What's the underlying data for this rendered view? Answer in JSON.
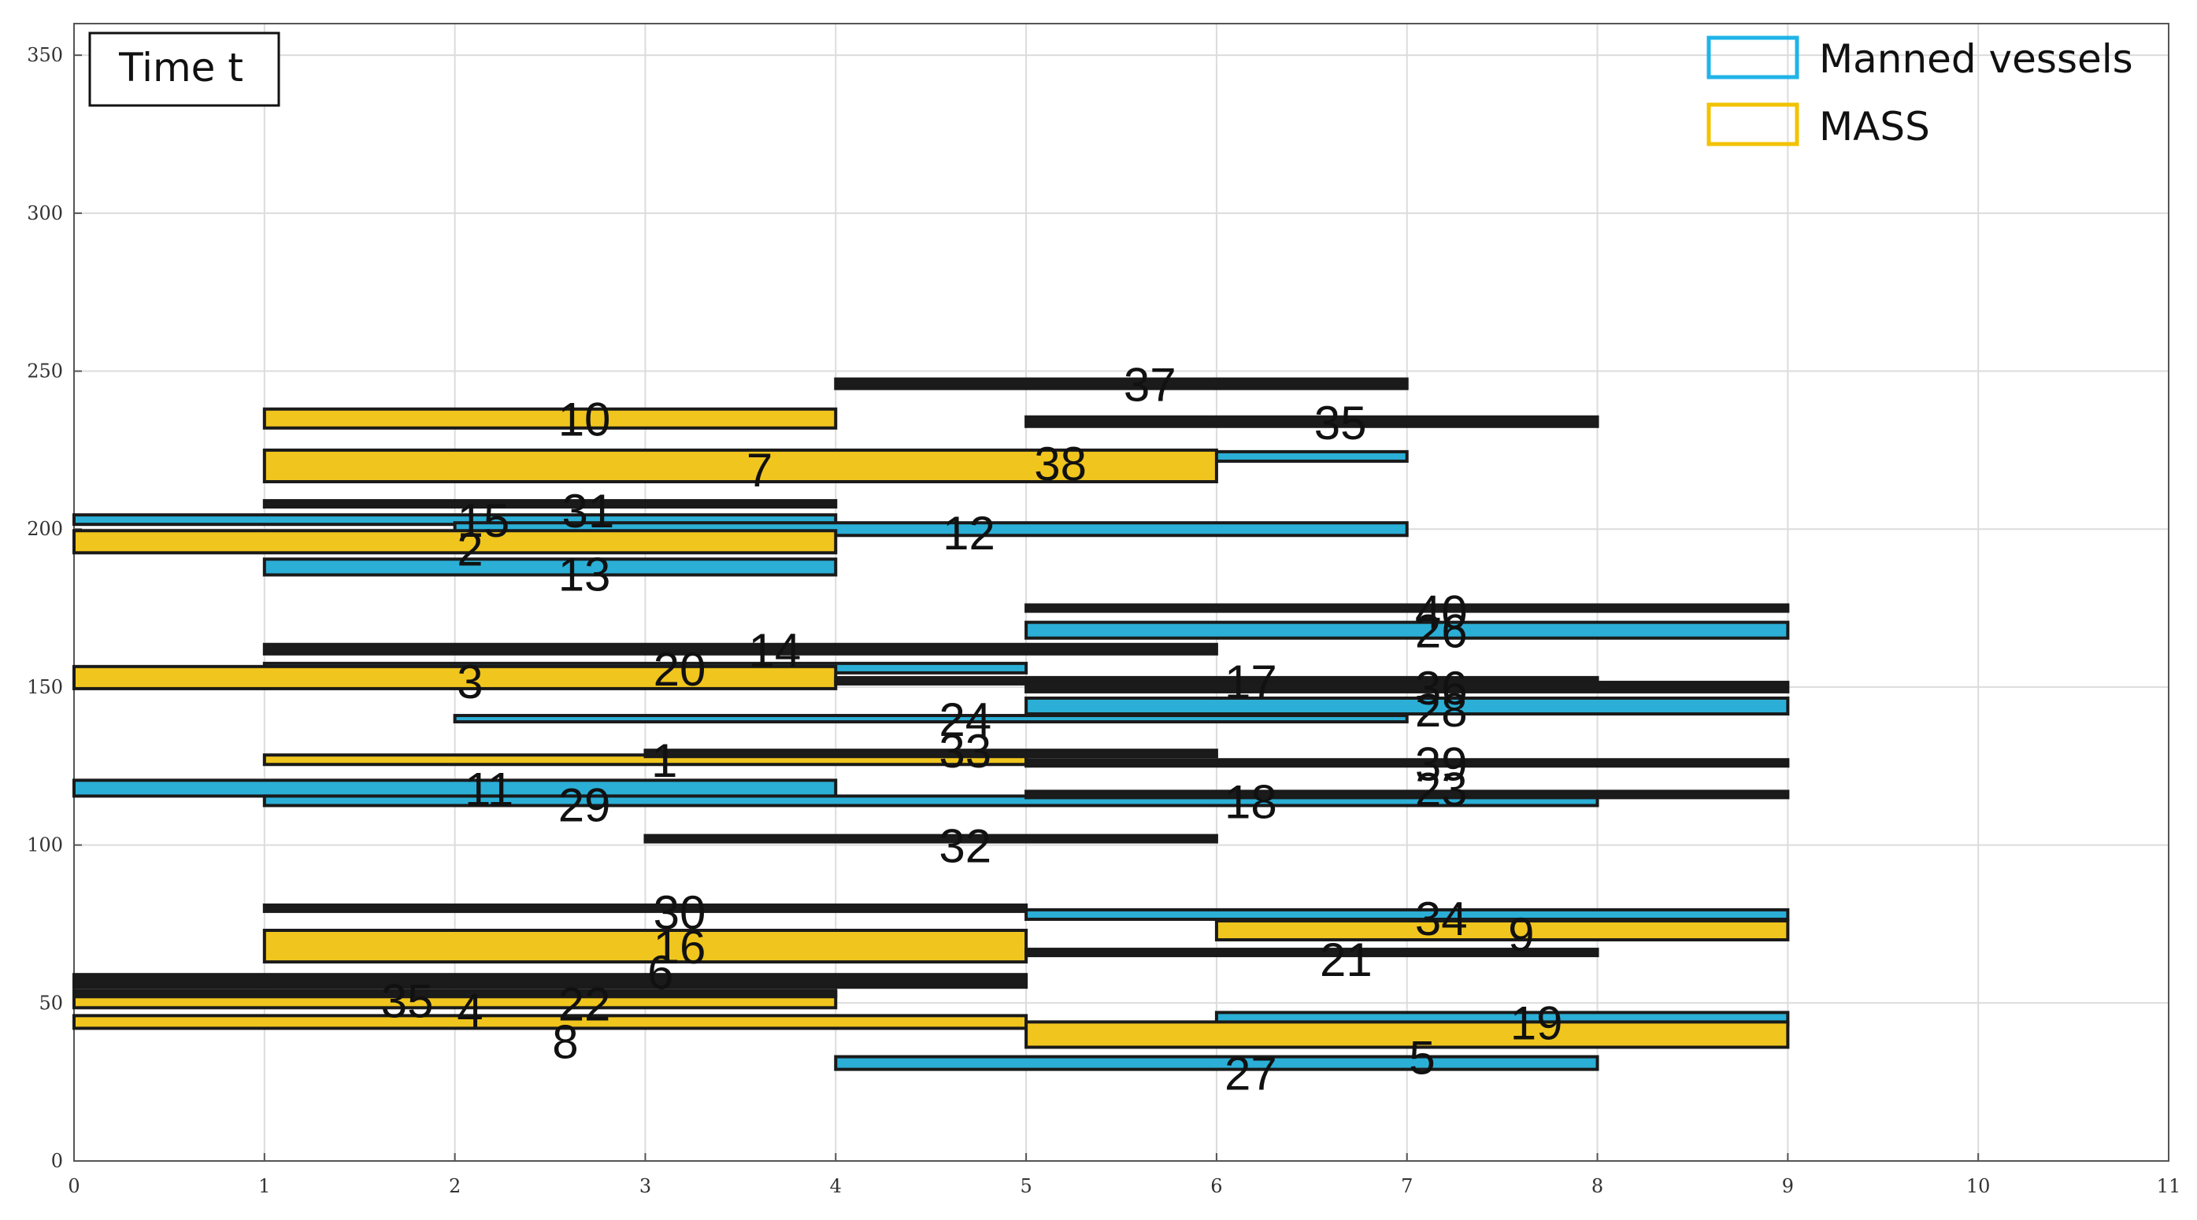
{
  "chart_data": {
    "type": "gantt",
    "annotation": "Time t",
    "xlim": [
      0,
      11
    ],
    "ylim": [
      0,
      360
    ],
    "x_ticks": [
      "0",
      "1",
      "2",
      "3",
      "4",
      "5",
      "6",
      "7",
      "8",
      "9",
      "10",
      "11"
    ],
    "y_ticks": [
      "0",
      "50",
      "100",
      "150",
      "200",
      "250",
      "300",
      "350"
    ],
    "grid": true,
    "legend_position": "top-right",
    "legend": [
      {
        "label": "Manned vessels",
        "color": "#1fb4e8",
        "kind": "manned"
      },
      {
        "label": "MASS",
        "color": "#f2c200",
        "kind": "mass"
      }
    ],
    "colors": {
      "manned": "#2bafd6",
      "mass": "#f0c51e",
      "other": "#1b1b1b",
      "edge": "#1a1a1a"
    },
    "bars": [
      {
        "id": "37",
        "x0": 4,
        "x1": 7,
        "y": 246,
        "h": 3,
        "kind": "other"
      },
      {
        "id": "10",
        "x0": 1,
        "x1": 4,
        "y": 235,
        "h": 6,
        "kind": "mass"
      },
      {
        "id": "35",
        "x0": 5,
        "x1": 8,
        "y": 234,
        "h": 3,
        "kind": "other"
      },
      {
        "id": "38",
        "x0": 3,
        "x1": 7,
        "y": 223,
        "h": 3,
        "kind": "manned"
      },
      {
        "id": "7",
        "x0": 1,
        "x1": 6,
        "y": 220,
        "h": 10,
        "kind": "mass"
      },
      {
        "id": "31",
        "x0": 1,
        "x1": 4,
        "y": 208,
        "h": 2,
        "kind": "other"
      },
      {
        "id": "15",
        "x0": 0,
        "x1": 4,
        "y": 203,
        "h": 3,
        "kind": "manned"
      },
      {
        "id": "12",
        "x0": 2,
        "x1": 7,
        "y": 200,
        "h": 4,
        "kind": "manned"
      },
      {
        "id": "2",
        "x0": 0,
        "x1": 4,
        "y": 196,
        "h": 7,
        "kind": "mass"
      },
      {
        "id": "13",
        "x0": 1,
        "x1": 4,
        "y": 188,
        "h": 5,
        "kind": "manned"
      },
      {
        "id": "40",
        "x0": 5,
        "x1": 9,
        "y": 175,
        "h": 2,
        "kind": "other"
      },
      {
        "id": "26",
        "x0": 5,
        "x1": 9,
        "y": 168,
        "h": 5,
        "kind": "manned"
      },
      {
        "id": "14",
        "x0": 1,
        "x1": 6,
        "y": 162,
        "h": 3,
        "kind": "other"
      },
      {
        "id": "20",
        "x0": 1,
        "x1": 5,
        "y": 156,
        "h": 3,
        "kind": "manned"
      },
      {
        "id": "3",
        "x0": 0,
        "x1": 4,
        "y": 153,
        "h": 7,
        "kind": "mass"
      },
      {
        "id": "17",
        "x0": 4,
        "x1": 8,
        "y": 152,
        "h": 2,
        "kind": "other"
      },
      {
        "id": "36",
        "x0": 5,
        "x1": 9,
        "y": 150,
        "h": 3,
        "kind": "other"
      },
      {
        "id": "24",
        "x0": 2,
        "x1": 7,
        "y": 140,
        "h": 2,
        "kind": "manned"
      },
      {
        "id": "28",
        "x0": 5,
        "x1": 9,
        "y": 144,
        "h": 5,
        "kind": "manned"
      },
      {
        "id": "1",
        "x0": 1,
        "x1": 5,
        "y": 127,
        "h": 3,
        "kind": "mass"
      },
      {
        "id": "33",
        "x0": 3,
        "x1": 6,
        "y": 129,
        "h": 2,
        "kind": "other"
      },
      {
        "id": "39",
        "x0": 5,
        "x1": 9,
        "y": 126,
        "h": 2,
        "kind": "other"
      },
      {
        "id": "11",
        "x0": 0,
        "x1": 4,
        "y": 118,
        "h": 5,
        "kind": "manned"
      },
      {
        "id": "29",
        "x0": 1,
        "x1": 8,
        "y": 114,
        "h": 3,
        "kind": "manned"
      },
      {
        "id": "18",
        "x0": 5,
        "x1": 9,
        "y": 116,
        "h": 2,
        "kind": "other"
      },
      {
        "id": "32",
        "x0": 3,
        "x1": 6,
        "y": 102,
        "h": 2,
        "kind": "other"
      },
      {
        "id": "30",
        "x0": 1,
        "x1": 5,
        "y": 80,
        "h": 2,
        "kind": "other"
      },
      {
        "id": "34",
        "x0": 5,
        "x1": 9,
        "y": 78,
        "h": 3,
        "kind": "manned"
      },
      {
        "id": "9",
        "x0": 6,
        "x1": 9,
        "y": 73,
        "h": 6,
        "kind": "mass"
      },
      {
        "id": "16",
        "x0": 1,
        "x1": 5,
        "y": 68,
        "h": 10,
        "kind": "mass"
      },
      {
        "id": "21",
        "x0": 5,
        "x1": 8,
        "y": 66,
        "h": 2,
        "kind": "other"
      },
      {
        "id": "25",
        "x0": 0,
        "x1": 5,
        "y": 57,
        "h": 4,
        "kind": "other"
      },
      {
        "id": "4",
        "x0": 0,
        "x1": 4,
        "y": 51,
        "h": 5,
        "kind": "mass"
      },
      {
        "id": "22",
        "x0": 0,
        "x1": 4,
        "y": 53,
        "h": 2,
        "kind": "other"
      },
      {
        "id": "19",
        "x0": 6,
        "x1": 9,
        "y": 45,
        "h": 4,
        "kind": "manned"
      },
      {
        "id": "8",
        "x0": 0,
        "x1": 5,
        "y": 44,
        "h": 4,
        "kind": "mass"
      },
      {
        "id": "5",
        "x0": 5,
        "x1": 9,
        "y": 40,
        "h": 8,
        "kind": "mass"
      },
      {
        "id": "27",
        "x0": 4,
        "x1": 8,
        "y": 31,
        "h": 4,
        "kind": "manned"
      }
    ],
    "labels": [
      {
        "text": "37",
        "x": 5.65,
        "y": 246
      },
      {
        "text": "35",
        "x": 6.65,
        "y": 234
      },
      {
        "text": "10",
        "x": 2.68,
        "y": 235
      },
      {
        "text": "38",
        "x": 5.18,
        "y": 221
      },
      {
        "text": "7",
        "x": 3.6,
        "y": 219
      },
      {
        "text": "31",
        "x": 2.7,
        "y": 206
      },
      {
        "text": "15",
        "x": 2.15,
        "y": 203
      },
      {
        "text": "12",
        "x": 4.7,
        "y": 199
      },
      {
        "text": "2",
        "x": 2.08,
        "y": 194
      },
      {
        "text": "13",
        "x": 2.68,
        "y": 186
      },
      {
        "text": "40",
        "x": 7.18,
        "y": 174
      },
      {
        "text": "26",
        "x": 7.18,
        "y": 168
      },
      {
        "text": "14",
        "x": 3.68,
        "y": 162
      },
      {
        "text": "20",
        "x": 3.18,
        "y": 156
      },
      {
        "text": "3",
        "x": 2.08,
        "y": 152
      },
      {
        "text": "17",
        "x": 6.18,
        "y": 152
      },
      {
        "text": "36",
        "x": 7.18,
        "y": 150
      },
      {
        "text": "28",
        "x": 7.18,
        "y": 143
      },
      {
        "text": "24",
        "x": 4.68,
        "y": 140
      },
      {
        "text": "33",
        "x": 4.68,
        "y": 130
      },
      {
        "text": "1",
        "x": 3.1,
        "y": 127
      },
      {
        "text": "39",
        "x": 7.18,
        "y": 126
      },
      {
        "text": "23",
        "x": 7.18,
        "y": 118
      },
      {
        "text": "11",
        "x": 2.18,
        "y": 118
      },
      {
        "text": "18",
        "x": 6.18,
        "y": 114
      },
      {
        "text": "29",
        "x": 2.68,
        "y": 113
      },
      {
        "text": "32",
        "x": 4.68,
        "y": 100
      },
      {
        "text": "30",
        "x": 3.18,
        "y": 79
      },
      {
        "text": "34",
        "x": 7.18,
        "y": 77
      },
      {
        "text": "9",
        "x": 7.6,
        "y": 72
      },
      {
        "text": "16",
        "x": 3.18,
        "y": 68
      },
      {
        "text": "21",
        "x": 6.68,
        "y": 64
      },
      {
        "text": "6",
        "x": 3.08,
        "y": 60
      },
      {
        "text": "35",
        "x": 1.75,
        "y": 51
      },
      {
        "text": "22",
        "x": 2.68,
        "y": 50
      },
      {
        "text": "4",
        "x": 2.08,
        "y": 48
      },
      {
        "text": "8",
        "x": 2.58,
        "y": 38
      },
      {
        "text": "19",
        "x": 7.68,
        "y": 44
      },
      {
        "text": "5",
        "x": 7.08,
        "y": 33
      },
      {
        "text": "27",
        "x": 6.18,
        "y": 28
      }
    ]
  }
}
